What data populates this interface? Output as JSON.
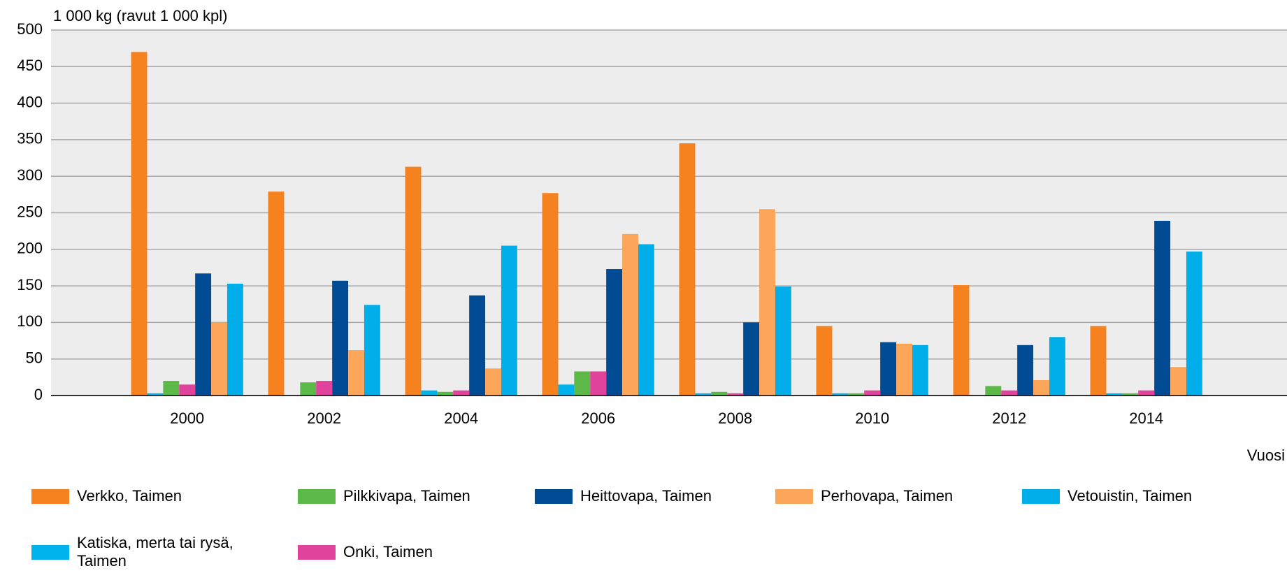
{
  "chart_data": {
    "type": "bar",
    "y_axis_label": "1 000 kg (ravut 1 000 kpl)",
    "x_axis_label": "Vuosi",
    "categories": [
      "2000",
      "2002",
      "2004",
      "2006",
      "2008",
      "2010",
      "2012",
      "2014"
    ],
    "series": [
      {
        "name": "Verkko, Taimen",
        "color": "#f5821f",
        "values": [
          470,
          279,
          313,
          277,
          345,
          95,
          151,
          95
        ]
      },
      {
        "name": "Pilkkivapa, Taimen",
        "color": "#5cb947",
        "values": [
          20,
          18,
          5,
          33,
          5,
          3,
          13,
          3
        ]
      },
      {
        "name": "Heittovapa, Taimen",
        "color": "#004b93",
        "values": [
          167,
          157,
          137,
          173,
          100,
          73,
          69,
          239
        ]
      },
      {
        "name": "Perhovapa, Taimen",
        "color": "#fca65a",
        "values": [
          100,
          62,
          37,
          221,
          255,
          71,
          21,
          39
        ]
      },
      {
        "name": "Vetouistin, Taimen",
        "color": "#00aee9",
        "values": [
          153,
          124,
          205,
          207,
          149,
          69,
          80,
          197
        ]
      },
      {
        "name": "Katiska, merta tai rysä, Taimen",
        "color": "#00b3ec",
        "values": [
          3,
          0,
          7,
          15,
          3,
          3,
          0,
          3
        ]
      },
      {
        "name": "Onki, Taimen",
        "color": "#e0439b",
        "values": [
          15,
          20,
          7,
          33,
          3,
          7,
          7,
          7
        ]
      }
    ],
    "ylim": [
      0,
      500
    ],
    "yticks": [
      0,
      50,
      100,
      150,
      200,
      250,
      300,
      350,
      400,
      450,
      500
    ],
    "grid": true
  }
}
